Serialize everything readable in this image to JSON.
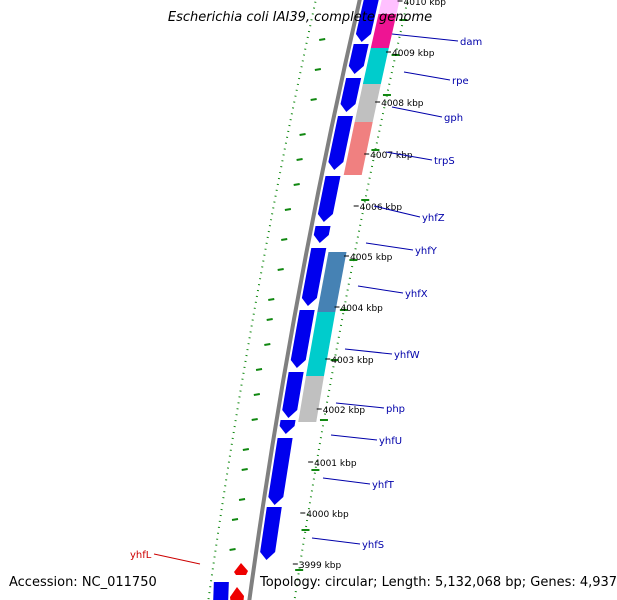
{
  "title": "Escherichia coli IAI39, complete genome",
  "footer": {
    "accession": "Accession: NC_011750",
    "topology": "Topology: circular; Length: 5,132,068 bp; Genes: 4,937"
  },
  "colors": {
    "backbone": "#808080",
    "cds": "#0000ee",
    "gene_label": "#0000aa",
    "gene_label_reverse": "#cc0000",
    "feature_reverse": "#ee0000",
    "gc_skew": "#118811",
    "category_magenta": "#ee1493",
    "category_pink": "#ffc0ff",
    "category_cyan": "#00cccc",
    "category_gray": "#c0c0c0",
    "category_salmon": "#f08080",
    "category_steel": "#4682b4"
  },
  "ticks": [
    "4010 kbp",
    "4009 kbp",
    "4008 kbp",
    "4007 kbp",
    "4006 kbp",
    "4005 kbp",
    "4004 kbp",
    "4003 kbp",
    "4002 kbp",
    "4001 kbp",
    "4000 kbp",
    "3999 kbp"
  ],
  "genes": [
    {
      "name": "dam",
      "strand": "forward"
    },
    {
      "name": "rpe",
      "strand": "forward"
    },
    {
      "name": "gph",
      "strand": "forward"
    },
    {
      "name": "trpS",
      "strand": "forward"
    },
    {
      "name": "yhfZ",
      "strand": "forward"
    },
    {
      "name": "yhfY",
      "strand": "forward"
    },
    {
      "name": "yhfX",
      "strand": "forward"
    },
    {
      "name": "yhfW",
      "strand": "forward"
    },
    {
      "name": "php",
      "strand": "forward"
    },
    {
      "name": "yhfU",
      "strand": "forward"
    },
    {
      "name": "yhfT",
      "strand": "forward"
    },
    {
      "name": "yhfS",
      "strand": "forward"
    },
    {
      "name": "yhfL",
      "strand": "reverse"
    }
  ]
}
